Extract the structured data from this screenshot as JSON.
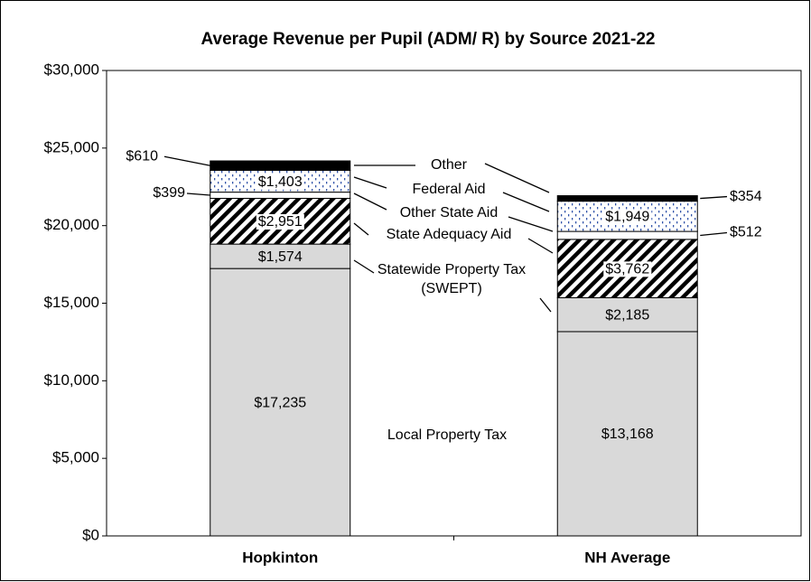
{
  "chart_data": {
    "type": "stacked_bar",
    "title": "Average Revenue per Pupil (ADM/ R) by Source 2021-22",
    "categories": [
      "Hopkinton",
      "NH Average"
    ],
    "series": [
      {
        "name": "Local Property Tax",
        "color": "#d9d9d9",
        "values": [
          17235,
          13168
        ],
        "value_labels": [
          "$17,235",
          "$13,168"
        ]
      },
      {
        "name": "Statewide Property Tax (SWEPT)",
        "color": "#d9d9d9",
        "values": [
          1574,
          2185
        ],
        "value_labels": [
          "$1,574",
          "$2,185"
        ]
      },
      {
        "name": "State Adequacy Aid",
        "color": "#000000",
        "pattern": "diagonal",
        "values": [
          2951,
          3762
        ],
        "value_labels": [
          "$2,951",
          "$3,762"
        ]
      },
      {
        "name": "Other State Aid",
        "color": "#ffffff",
        "values": [
          399,
          512
        ],
        "value_labels": [
          "$399",
          "$512"
        ]
      },
      {
        "name": "Federal Aid",
        "color": "#3355aa",
        "pattern": "dots",
        "values": [
          1403,
          1949
        ],
        "value_labels": [
          "$1,403",
          "$1,949"
        ]
      },
      {
        "name": "Other",
        "color": "#000000",
        "values": [
          610,
          354
        ],
        "value_labels": [
          "$610",
          "$354"
        ]
      }
    ],
    "ylim": [
      0,
      30000
    ],
    "yticks": [
      {
        "value": 0,
        "label": "$0"
      },
      {
        "value": 5000,
        "label": "$5,000"
      },
      {
        "value": 10000,
        "label": "$10,000"
      },
      {
        "value": 15000,
        "label": "$15,000"
      },
      {
        "value": 20000,
        "label": "$20,000"
      },
      {
        "value": 25000,
        "label": "$25,000"
      },
      {
        "value": 30000,
        "label": "$30,000"
      }
    ]
  }
}
